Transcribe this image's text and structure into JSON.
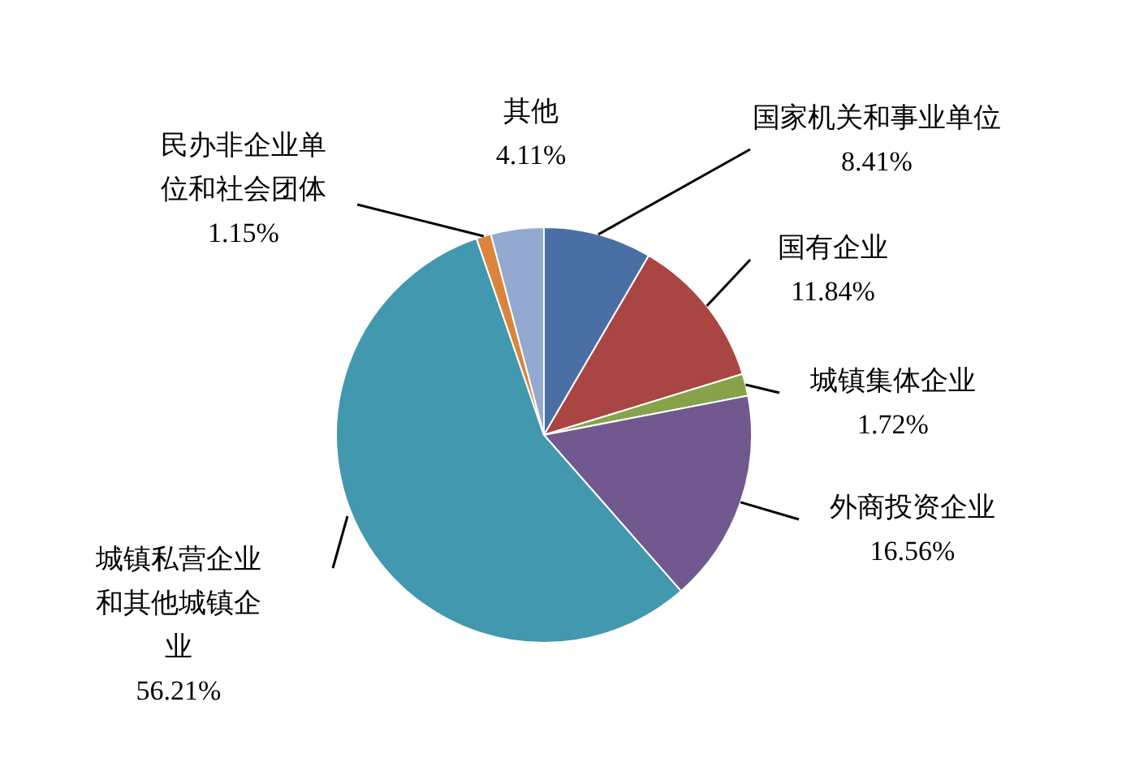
{
  "chart_data": {
    "type": "pie",
    "categories": [
      "国家机关和事业单位",
      "国有企业",
      "城镇集体企业",
      "外商投资企业",
      "城镇私营企业和其他城镇企业",
      "民办非企业单位和社会团体",
      "其他"
    ],
    "values": [
      8.41,
      11.84,
      1.72,
      16.56,
      56.21,
      1.15,
      4.11
    ],
    "colors": [
      "#4a6fa5",
      "#a94543",
      "#86a34a",
      "#71588f",
      "#4198af",
      "#db843d",
      "#93a9cf"
    ],
    "value_labels": [
      "8.41%",
      "11.84%",
      "1.72%",
      "16.56%",
      "56.21%",
      "1.15%",
      "4.11%"
    ]
  }
}
